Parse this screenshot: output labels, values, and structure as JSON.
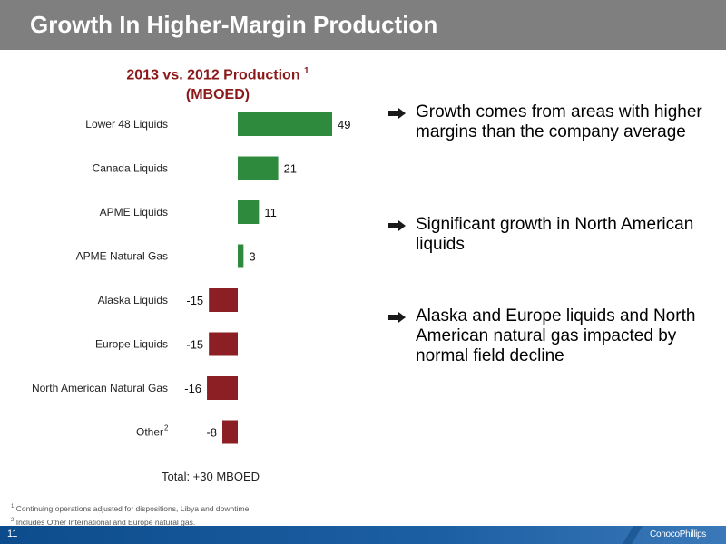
{
  "header": {
    "title": "Growth In Higher-Margin Production"
  },
  "chart_title": {
    "line1": "2013 vs. 2012 Production",
    "superscript": "1",
    "line2": "(MBOED)"
  },
  "chart_data": {
    "type": "bar",
    "orientation": "horizontal",
    "title": "2013 vs. 2012 Production (MBOED)",
    "categories": [
      "Lower 48 Liquids",
      "Canada Liquids",
      "APME Liquids",
      "APME Natural Gas",
      "Alaska Liquids",
      "Europe Liquids",
      "North American Natural Gas",
      "Other"
    ],
    "category_superscripts": [
      "",
      "",
      "",
      "",
      "",
      "",
      "",
      "2"
    ],
    "values": [
      49,
      21,
      11,
      3,
      -15,
      -15,
      -16,
      -8
    ],
    "positive_color": "#2e8b3d",
    "negative_color": "#8b1f24",
    "grid": false,
    "legend": "none"
  },
  "bullets": [
    {
      "text": "Growth comes from areas with higher margins than the company average"
    },
    {
      "text": "Significant growth in North American liquids"
    },
    {
      "text": "Alaska and Europe liquids and North American natural gas impacted by normal field decline"
    }
  ],
  "total": "Total: +30 MBOED",
  "footnotes": [
    {
      "marker": "1",
      "text": "Continuing operations adjusted for dispositions, Libya and downtime."
    },
    {
      "marker": "2",
      "text": "Includes Other International and Europe natural gas."
    }
  ],
  "footer": {
    "page_number": "11",
    "logo_text": "ConocoPhillips"
  },
  "colors": {
    "header_bg": "#7f7f7f",
    "title_red": "#8b1a1a",
    "footer_blue": "#0d4c8c"
  }
}
